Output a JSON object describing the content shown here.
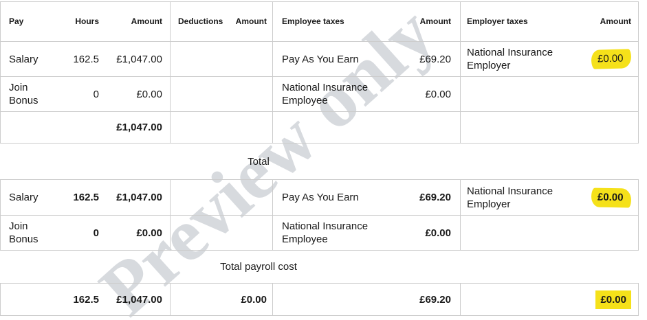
{
  "watermark": {
    "text": "Preview only"
  },
  "headers": {
    "pay": "Pay",
    "hours": "Hours",
    "pay_amount": "Amount",
    "deductions": "Deductions",
    "deductions_amount": "Amount",
    "employee_taxes": "Employee taxes",
    "employee_taxes_amount": "Amount",
    "employer_taxes": "Employer taxes",
    "employer_taxes_amount": "Amount"
  },
  "period_table": {
    "rows": [
      {
        "pay": "Salary",
        "hours": "162.5",
        "pay_amount": "£1,047.00",
        "deduction": "",
        "deduction_amount": "",
        "employee_tax": "Pay As You Earn",
        "employee_tax_amount": "£69.20",
        "employer_tax": "National Insurance Employer",
        "employer_tax_amount": "£0.00"
      },
      {
        "pay": "Join Bonus",
        "hours": "0",
        "pay_amount": "£0.00",
        "deduction": "",
        "deduction_amount": "",
        "employee_tax": "National Insurance Employee",
        "employee_tax_amount": "£0.00",
        "employer_tax": "",
        "employer_tax_amount": ""
      },
      {
        "pay_amount": "£1,047.00"
      }
    ]
  },
  "total_section": {
    "caption": "Total",
    "rows": [
      {
        "pay": "Salary",
        "hours": "162.5",
        "pay_amount": "£1,047.00",
        "employee_tax": "Pay As You Earn",
        "employee_tax_amount": "£69.20",
        "employer_tax": "National Insurance Employer",
        "employer_tax_amount": "£0.00"
      },
      {
        "pay": "Join Bonus",
        "hours": "0",
        "pay_amount": "£0.00",
        "employee_tax": "National Insurance Employee",
        "employee_tax_amount": "£0.00",
        "employer_tax": "",
        "employer_tax_amount": ""
      }
    ]
  },
  "payroll_section": {
    "caption": "Total payroll cost",
    "grand_total": {
      "hours": "162.5",
      "pay_amount": "£1,047.00",
      "deduction_amount": "£0.00",
      "employee_tax_amount": "£69.20",
      "employer_tax_amount": "£0.00"
    }
  },
  "colors": {
    "highlight": "#f5e11a",
    "table_border": "#cccccc",
    "watermark": "#d7dade"
  }
}
